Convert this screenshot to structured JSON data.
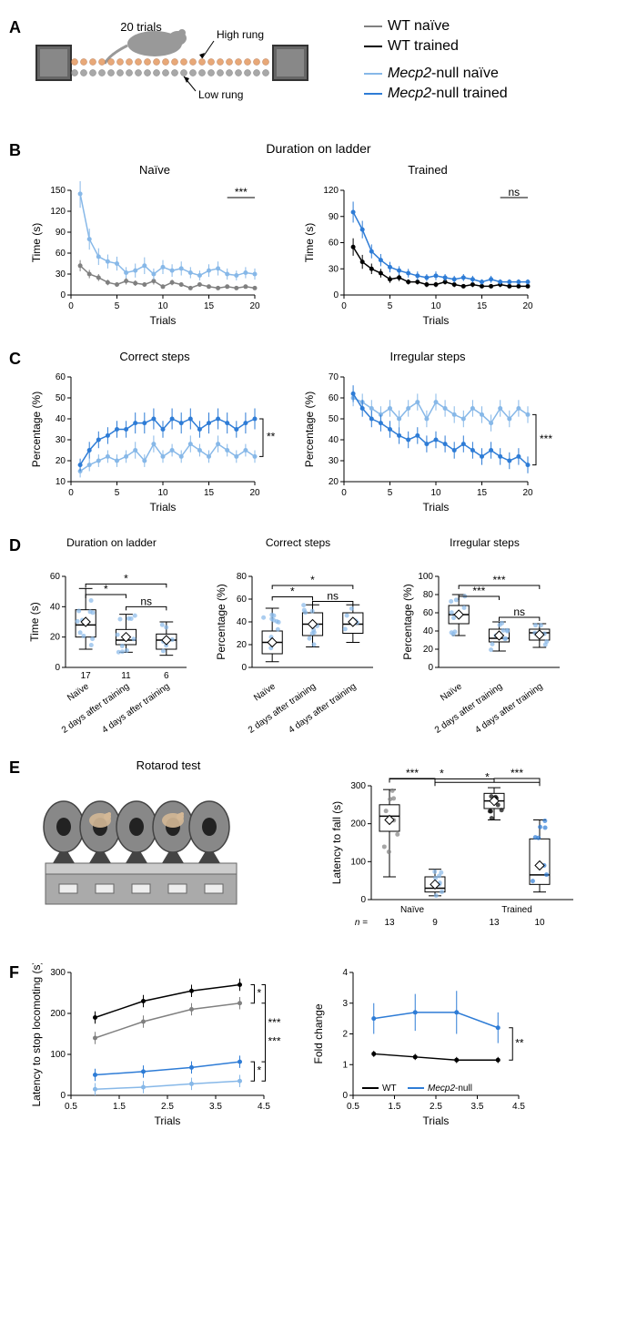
{
  "colors": {
    "wt_naive": "#808080",
    "wt_trained": "#000000",
    "mecp2_naive": "#87b8e8",
    "mecp2_trained": "#2e7cd6",
    "high_rung": "#e8a878",
    "low_rung": "#a8a8a8",
    "rotarod_wheel": "#888888",
    "rotarod_base": "#999999",
    "bg": "#ffffff",
    "text": "#000000"
  },
  "panelA": {
    "label": "A",
    "trials": "20 trials",
    "high_label": "High rung",
    "low_label": "Low rung",
    "legend": {
      "wt_naive": "WT naïve",
      "wt_trained": "WT trained",
      "mecp2_naive": "Mecp2-null naïve",
      "mecp2_trained": "Mecp2-null trained",
      "mecp2_style": "italic"
    }
  },
  "panelB": {
    "label": "B",
    "title": "Duration on ladder",
    "naive": {
      "title": "Naïve",
      "ylabel": "Time (s)",
      "xlabel": "Trials",
      "ylim": [
        0,
        150
      ],
      "ytick_step": 30,
      "xlim": [
        0,
        20
      ],
      "xtick_step": 5,
      "sig": "***",
      "wt": [
        42,
        30,
        25,
        18,
        15,
        20,
        17,
        15,
        20,
        12,
        18,
        15,
        10,
        15,
        12,
        10,
        12,
        10,
        12,
        10
      ],
      "wt_err": [
        8,
        6,
        5,
        4,
        3,
        5,
        4,
        3,
        5,
        3,
        4,
        3,
        2,
        3,
        2,
        2,
        3,
        2,
        3,
        2
      ],
      "mecp2": [
        145,
        80,
        55,
        48,
        45,
        32,
        35,
        42,
        30,
        40,
        35,
        38,
        32,
        28,
        35,
        38,
        30,
        28,
        32,
        30
      ],
      "mecp2_err": [
        20,
        15,
        12,
        10,
        10,
        8,
        10,
        12,
        8,
        10,
        9,
        10,
        8,
        7,
        9,
        10,
        8,
        7,
        8,
        8
      ]
    },
    "trained": {
      "title": "Trained",
      "ylabel": "Time (s)",
      "xlabel": "Trials",
      "ylim": [
        0,
        120
      ],
      "ytick_step": 30,
      "xlim": [
        0,
        20
      ],
      "xtick_step": 5,
      "sig": "ns",
      "wt": [
        55,
        38,
        30,
        25,
        18,
        20,
        15,
        15,
        12,
        12,
        15,
        12,
        10,
        12,
        10,
        10,
        12,
        10,
        10,
        10
      ],
      "wt_err": [
        10,
        8,
        6,
        5,
        4,
        4,
        3,
        3,
        3,
        3,
        3,
        3,
        2,
        3,
        2,
        2,
        3,
        2,
        2,
        2
      ],
      "mecp2": [
        95,
        75,
        50,
        40,
        32,
        28,
        25,
        22,
        20,
        22,
        20,
        18,
        20,
        18,
        15,
        18,
        15,
        15,
        15,
        15
      ],
      "mecp2_err": [
        12,
        10,
        8,
        7,
        6,
        5,
        5,
        5,
        4,
        5,
        4,
        4,
        4,
        4,
        3,
        4,
        3,
        3,
        3,
        3
      ]
    }
  },
  "panelC": {
    "label": "C",
    "correct": {
      "title": "Correct steps",
      "ylabel": "Percentage (%)",
      "xlabel": "Trials",
      "ylim": [
        10,
        60
      ],
      "ytick_step": 10,
      "xlim": [
        0,
        20
      ],
      "xtick_step": 5,
      "sig": "**",
      "naive": [
        15,
        18,
        20,
        22,
        20,
        22,
        25,
        20,
        28,
        22,
        25,
        22,
        28,
        25,
        22,
        28,
        25,
        22,
        25,
        22
      ],
      "naive_err": [
        3,
        3,
        3,
        3,
        3,
        3,
        4,
        3,
        4,
        3,
        3,
        3,
        4,
        3,
        3,
        4,
        3,
        3,
        3,
        3
      ],
      "trained": [
        18,
        25,
        30,
        32,
        35,
        35,
        38,
        38,
        40,
        35,
        40,
        38,
        40,
        35,
        38,
        40,
        38,
        35,
        38,
        40
      ],
      "trained_err": [
        3,
        4,
        4,
        4,
        4,
        4,
        5,
        5,
        5,
        4,
        5,
        5,
        5,
        4,
        5,
        5,
        5,
        4,
        5,
        5
      ]
    },
    "irregular": {
      "title": "Irregular steps",
      "ylabel": "Percentage (%)",
      "xlabel": "Trials",
      "ylim": [
        20,
        70
      ],
      "ytick_step": 10,
      "xlim": [
        0,
        20
      ],
      "xtick_step": 5,
      "sig": "***",
      "naive": [
        60,
        58,
        55,
        52,
        55,
        50,
        55,
        58,
        50,
        58,
        55,
        52,
        50,
        55,
        52,
        48,
        55,
        50,
        55,
        52
      ],
      "naive_err": [
        4,
        4,
        4,
        4,
        4,
        4,
        4,
        4,
        4,
        4,
        4,
        4,
        4,
        4,
        4,
        4,
        4,
        4,
        4,
        4
      ],
      "trained": [
        62,
        55,
        50,
        48,
        45,
        42,
        40,
        42,
        38,
        40,
        38,
        35,
        38,
        35,
        32,
        35,
        32,
        30,
        32,
        28
      ],
      "trained_err": [
        4,
        4,
        4,
        4,
        4,
        4,
        4,
        4,
        4,
        4,
        4,
        4,
        4,
        4,
        4,
        4,
        4,
        4,
        4,
        4
      ]
    }
  },
  "panelD": {
    "label": "D",
    "categories": [
      "Naïve",
      "2 days after training",
      "4 days after training"
    ],
    "n": [
      17,
      11,
      6
    ],
    "duration": {
      "title": "Duration on ladder",
      "ylabel": "Time (s)",
      "ylim": [
        0,
        60
      ],
      "ytick_step": 20,
      "boxes": [
        {
          "q1": 20,
          "median": 28,
          "q3": 38,
          "wlo": 12,
          "whi": 52,
          "mean": 30
        },
        {
          "q1": 15,
          "median": 18,
          "q3": 25,
          "wlo": 10,
          "whi": 35,
          "mean": 20
        },
        {
          "q1": 12,
          "median": 18,
          "q3": 22,
          "wlo": 8,
          "whi": 30,
          "mean": 18
        }
      ],
      "sigs": [
        {
          "from": 0,
          "to": 1,
          "label": "*",
          "y": 48
        },
        {
          "from": 0,
          "to": 2,
          "label": "*",
          "y": 55
        },
        {
          "from": 1,
          "to": 2,
          "label": "ns",
          "y": 40
        }
      ]
    },
    "correct": {
      "title": "Correct steps",
      "ylabel": "Percentage (%)",
      "ylim": [
        0,
        80
      ],
      "ytick_step": 20,
      "boxes": [
        {
          "q1": 12,
          "median": 22,
          "q3": 32,
          "wlo": 5,
          "whi": 52,
          "mean": 22
        },
        {
          "q1": 28,
          "median": 38,
          "q3": 48,
          "wlo": 18,
          "whi": 55,
          "mean": 38
        },
        {
          "q1": 30,
          "median": 38,
          "q3": 48,
          "wlo": 22,
          "whi": 55,
          "mean": 40
        }
      ],
      "sigs": [
        {
          "from": 0,
          "to": 1,
          "label": "*",
          "y": 62
        },
        {
          "from": 0,
          "to": 2,
          "label": "*",
          "y": 72
        },
        {
          "from": 1,
          "to": 2,
          "label": "ns",
          "y": 58
        }
      ]
    },
    "irregular": {
      "title": "Irregular steps",
      "ylabel": "Percentage (%)",
      "ylim": [
        0,
        100
      ],
      "ytick_step": 20,
      "boxes": [
        {
          "q1": 48,
          "median": 58,
          "q3": 68,
          "wlo": 35,
          "whi": 80,
          "mean": 58
        },
        {
          "q1": 28,
          "median": 32,
          "q3": 42,
          "wlo": 18,
          "whi": 50,
          "mean": 35
        },
        {
          "q1": 30,
          "median": 38,
          "q3": 42,
          "wlo": 22,
          "whi": 48,
          "mean": 36
        }
      ],
      "sigs": [
        {
          "from": 0,
          "to": 1,
          "label": "***",
          "y": 78
        },
        {
          "from": 0,
          "to": 2,
          "label": "***",
          "y": 90
        },
        {
          "from": 1,
          "to": 2,
          "label": "ns",
          "y": 55
        }
      ]
    }
  },
  "panelE": {
    "label": "E",
    "title": "Rotarod test",
    "ylabel": "Latency to fall (s)",
    "ylim": [
      0,
      300
    ],
    "ytick_step": 100,
    "groups": [
      "Naïve",
      "Trained"
    ],
    "n_label": "n =",
    "n": [
      13,
      9,
      13,
      10
    ],
    "boxes": [
      {
        "q1": 180,
        "median": 220,
        "q3": 250,
        "wlo": 60,
        "whi": 290,
        "mean": 210,
        "color": "wt_naive"
      },
      {
        "q1": 20,
        "median": 30,
        "q3": 60,
        "wlo": 10,
        "whi": 80,
        "mean": 40,
        "color": "mecp2_naive"
      },
      {
        "q1": 240,
        "median": 260,
        "q3": 280,
        "wlo": 210,
        "whi": 295,
        "mean": 260,
        "color": "wt_trained"
      },
      {
        "q1": 40,
        "median": 65,
        "q3": 160,
        "wlo": 20,
        "whi": 210,
        "mean": 90,
        "color": "mecp2_trained"
      }
    ],
    "sigs": [
      {
        "from": 0,
        "to": 1,
        "label": "***",
        "y": 300
      },
      {
        "from": 2,
        "to": 3,
        "label": "***",
        "y": 300
      },
      {
        "from": 0,
        "to": 2,
        "label": "*",
        "y": 330
      },
      {
        "from": 1,
        "to": 3,
        "label": "*",
        "y": 315
      }
    ]
  },
  "panelF": {
    "label": "F",
    "latency": {
      "ylabel": "Latency to stop locomoting (s)",
      "xlabel": "Trials",
      "ylim": [
        0,
        300
      ],
      "ytick_step": 100,
      "xlim": [
        1,
        4
      ],
      "wt_naive": [
        140,
        180,
        210,
        225
      ],
      "wt_trained": [
        190,
        230,
        255,
        270
      ],
      "mecp2_naive": [
        15,
        20,
        28,
        35
      ],
      "mecp2_trained": [
        50,
        58,
        68,
        82
      ],
      "err": [
        15,
        15,
        15,
        15
      ],
      "sigs": [
        {
          "between": "wt",
          "label": "*"
        },
        {
          "between": "mecp2",
          "label": "*"
        },
        {
          "between": "naive_groups",
          "label": "***"
        },
        {
          "between": "trained_groups",
          "label": "***"
        }
      ]
    },
    "fold": {
      "ylabel": "Fold change",
      "xlabel": "Trials",
      "ylim": [
        0,
        4
      ],
      "ytick_step": 1,
      "xlim": [
        1,
        4
      ],
      "wt": [
        1.35,
        1.25,
        1.15,
        1.15
      ],
      "mecp2": [
        2.5,
        2.7,
        2.7,
        2.2
      ],
      "wt_err": [
        0.1,
        0.1,
        0.1,
        0.1
      ],
      "mecp2_err": [
        0.5,
        0.6,
        0.7,
        0.5
      ],
      "sig": "**",
      "legend": {
        "wt": "WT",
        "mecp2": "Mecp2-null"
      }
    }
  }
}
